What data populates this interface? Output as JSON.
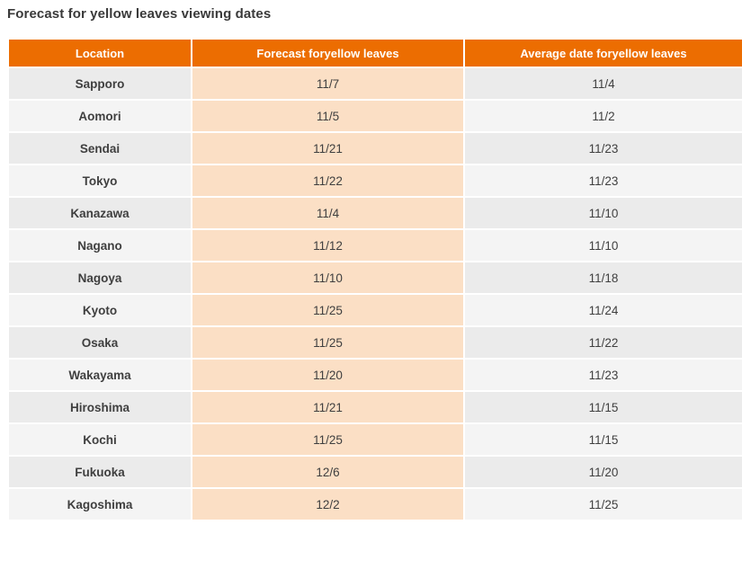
{
  "title": "Forecast for yellow leaves viewing dates",
  "chart_data": {
    "type": "table",
    "title": "Forecast for yellow leaves viewing dates",
    "columns": [
      "Location",
      "Forecast foryellow leaves",
      "Average date foryellow leaves"
    ],
    "rows": [
      [
        "Sapporo",
        "11/7",
        "11/4"
      ],
      [
        "Aomori",
        "11/5",
        "11/2"
      ],
      [
        "Sendai",
        "11/21",
        "11/23"
      ],
      [
        "Tokyo",
        "11/22",
        "11/23"
      ],
      [
        "Kanazawa",
        "11/4",
        "11/10"
      ],
      [
        "Nagano",
        "11/12",
        "11/10"
      ],
      [
        "Nagoya",
        "11/10",
        "11/18"
      ],
      [
        "Kyoto",
        "11/25",
        "11/24"
      ],
      [
        "Osaka",
        "11/25",
        "11/22"
      ],
      [
        "Wakayama",
        "11/20",
        "11/23"
      ],
      [
        "Hiroshima",
        "11/21",
        "11/15"
      ],
      [
        "Kochi",
        "11/25",
        "11/15"
      ],
      [
        "Fukuoka",
        "12/6",
        "11/20"
      ],
      [
        "Kagoshima",
        "12/2",
        "11/25"
      ]
    ]
  },
  "colors": {
    "header_bg": "#EC6D01",
    "header_text": "#FFFFFF",
    "row_odd_bg": "#EBEBEB",
    "row_even_bg": "#F4F4F4",
    "forecast_col_bg": "#FBDFC5",
    "cell_text": "#3F3F3F",
    "title_text": "#3A3A3A",
    "page_bg": "#FFFFFF"
  }
}
